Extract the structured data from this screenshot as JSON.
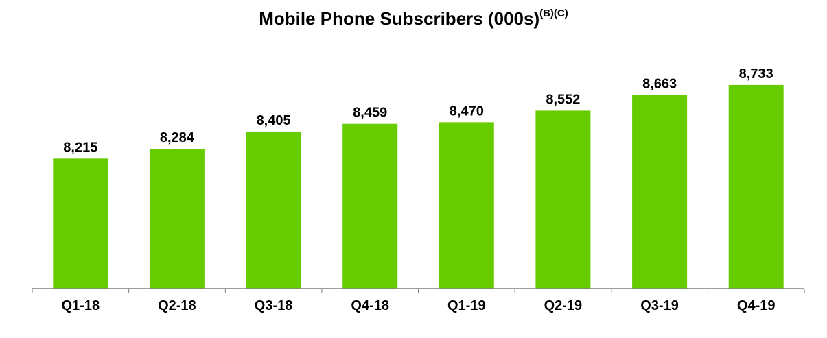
{
  "chart_data": {
    "type": "bar",
    "title": "Mobile Phone Subscribers (000s)",
    "title_superscript": "(B)(C)",
    "xlabel": "",
    "ylabel": "",
    "categories": [
      "Q1-18",
      "Q2-18",
      "Q3-18",
      "Q4-18",
      "Q1-19",
      "Q2-19",
      "Q3-19",
      "Q4-19"
    ],
    "values": [
      8215,
      8284,
      8405,
      8459,
      8470,
      8552,
      8663,
      8733
    ],
    "value_labels": [
      "8,215",
      "8,284",
      "8,405",
      "8,459",
      "8,470",
      "8,552",
      "8,663",
      "8,733"
    ],
    "ylim": [
      7300,
      8800
    ],
    "grid": false,
    "legend": "none",
    "colors": {
      "bar": "#66cc00",
      "axis": "#7f7f7f",
      "text": "#000000"
    }
  }
}
